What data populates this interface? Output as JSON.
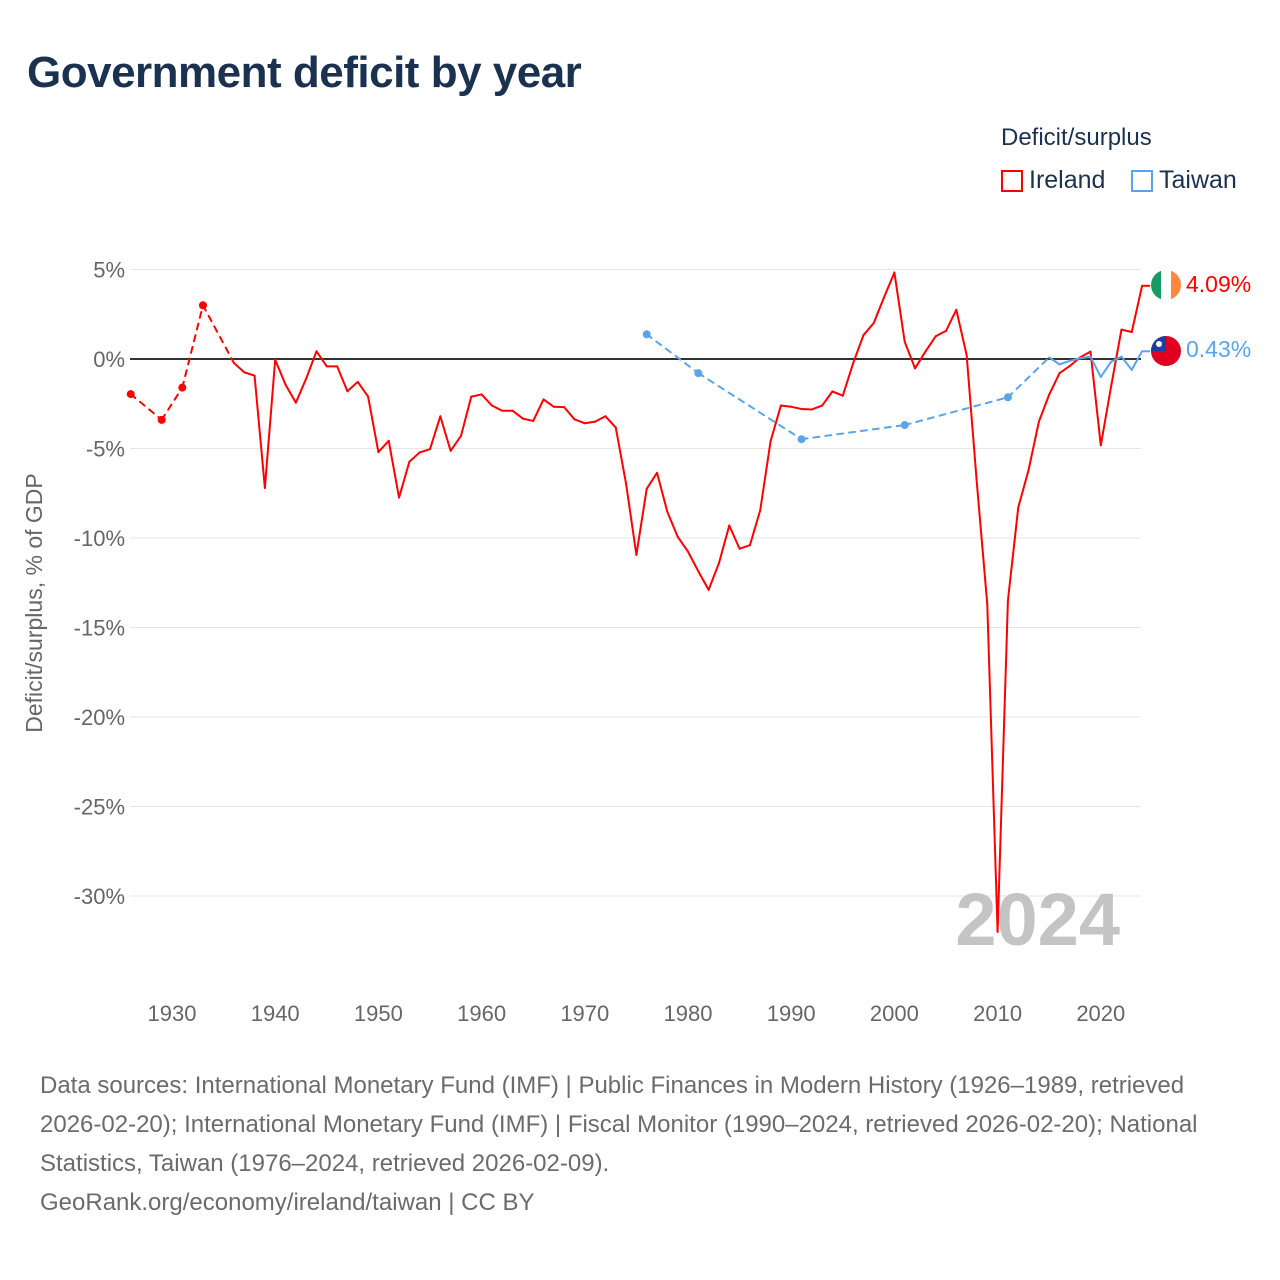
{
  "title": "Government deficit by year",
  "legend": {
    "title": "Deficit/surplus",
    "items": [
      {
        "name": "Ireland",
        "color": "#ff0000"
      },
      {
        "name": "Taiwan",
        "color": "#5ba4ea"
      }
    ]
  },
  "end_labels": {
    "ireland": "4.09%",
    "taiwan": "0.43%"
  },
  "watermark_year": "2024",
  "footer": {
    "sources": "Data sources: International Monetary Fund (IMF) | Public Finances in Modern History (1926–1989, retrieved 2026-02-20); International Monetary Fund (IMF) | Fiscal Monitor (1990–2024, retrieved 2026-02-20); National Statistics, Taiwan (1976–2024, retrieved 2026-02-09).",
    "credit": "GeoRank.org/economy/ireland/taiwan | CC BY"
  },
  "chart_data": {
    "type": "line",
    "title": "Government deficit by year",
    "xlabel": "",
    "ylabel": "Deficit/surplus, % of GDP",
    "xlim": [
      1926,
      2024
    ],
    "ylim": [
      -32,
      5
    ],
    "yticks": [
      5,
      0,
      -5,
      -10,
      -15,
      -20,
      -25,
      -30
    ],
    "ytick_labels": [
      "5%",
      "0%",
      "-5%",
      "-10%",
      "-15%",
      "-20%",
      "-25%",
      "-30%"
    ],
    "xticks": [
      1930,
      1940,
      1950,
      1960,
      1970,
      1980,
      1990,
      2000,
      2010,
      2020
    ],
    "xtick_labels": [
      "1930",
      "1940",
      "1950",
      "1960",
      "1970",
      "1980",
      "1990",
      "2000",
      "2010",
      "2020"
    ],
    "grid": true,
    "legend_position": "top-right",
    "series": [
      {
        "name": "Ireland",
        "color": "#ff0000",
        "x": [
          1926,
          1929,
          1931,
          1933,
          1936,
          1937,
          1938,
          1939,
          1940,
          1941,
          1942,
          1943,
          1944,
          1945,
          1946,
          1947,
          1948,
          1949,
          1950,
          1951,
          1952,
          1953,
          1954,
          1955,
          1956,
          1957,
          1958,
          1959,
          1960,
          1961,
          1962,
          1963,
          1964,
          1965,
          1966,
          1967,
          1968,
          1969,
          1970,
          1971,
          1972,
          1973,
          1974,
          1975,
          1976,
          1977,
          1978,
          1979,
          1980,
          1981,
          1982,
          1983,
          1984,
          1985,
          1986,
          1987,
          1988,
          1989,
          1990,
          1991,
          1992,
          1993,
          1994,
          1995,
          1996,
          1997,
          1998,
          1999,
          2000,
          2001,
          2002,
          2003,
          2004,
          2005,
          2006,
          2007,
          2008,
          2009,
          2010,
          2011,
          2012,
          2013,
          2014,
          2015,
          2016,
          2017,
          2018,
          2019,
          2020,
          2021,
          2022,
          2023,
          2024
        ],
        "y": [
          -1.96,
          -3.4,
          -1.6,
          3.0,
          -0.22,
          -0.74,
          -0.93,
          -7.2,
          -0.04,
          -1.43,
          -2.44,
          -1.1,
          0.43,
          -0.41,
          -0.41,
          -1.8,
          -1.28,
          -2.1,
          -5.2,
          -4.57,
          -7.74,
          -5.74,
          -5.22,
          -5.04,
          -3.2,
          -5.13,
          -4.3,
          -2.1,
          -1.98,
          -2.6,
          -2.89,
          -2.89,
          -3.33,
          -3.46,
          -2.26,
          -2.67,
          -2.69,
          -3.37,
          -3.59,
          -3.5,
          -3.2,
          -3.83,
          -6.97,
          -10.94,
          -7.25,
          -6.36,
          -8.54,
          -9.93,
          -10.76,
          -11.86,
          -12.9,
          -11.4,
          -9.3,
          -10.6,
          -10.4,
          -8.45,
          -4.6,
          -2.6,
          -2.67,
          -2.79,
          -2.82,
          -2.6,
          -1.81,
          -2.05,
          -0.24,
          1.33,
          2.01,
          3.45,
          4.83,
          0.96,
          -0.52,
          0.41,
          1.27,
          1.57,
          2.75,
          0.22,
          -7.0,
          -13.7,
          -32.0,
          -13.5,
          -8.3,
          -6.2,
          -3.5,
          -1.99,
          -0.79,
          -0.39,
          0.09,
          0.41,
          -4.82,
          -1.53,
          1.64,
          1.51,
          4.09
        ]
      },
      {
        "name": "Taiwan",
        "color": "#5ba4ea",
        "x": [
          1976,
          1981,
          1991,
          2001,
          2011,
          2015,
          2016,
          2017,
          2018,
          2019,
          2020,
          2021,
          2022,
          2023,
          2024
        ],
        "y": [
          1.38,
          -0.79,
          -4.48,
          -3.69,
          -2.14,
          0.09,
          -0.3,
          -0.1,
          0.04,
          0.13,
          -1.0,
          -0.15,
          0.13,
          -0.61,
          0.43
        ]
      }
    ]
  }
}
